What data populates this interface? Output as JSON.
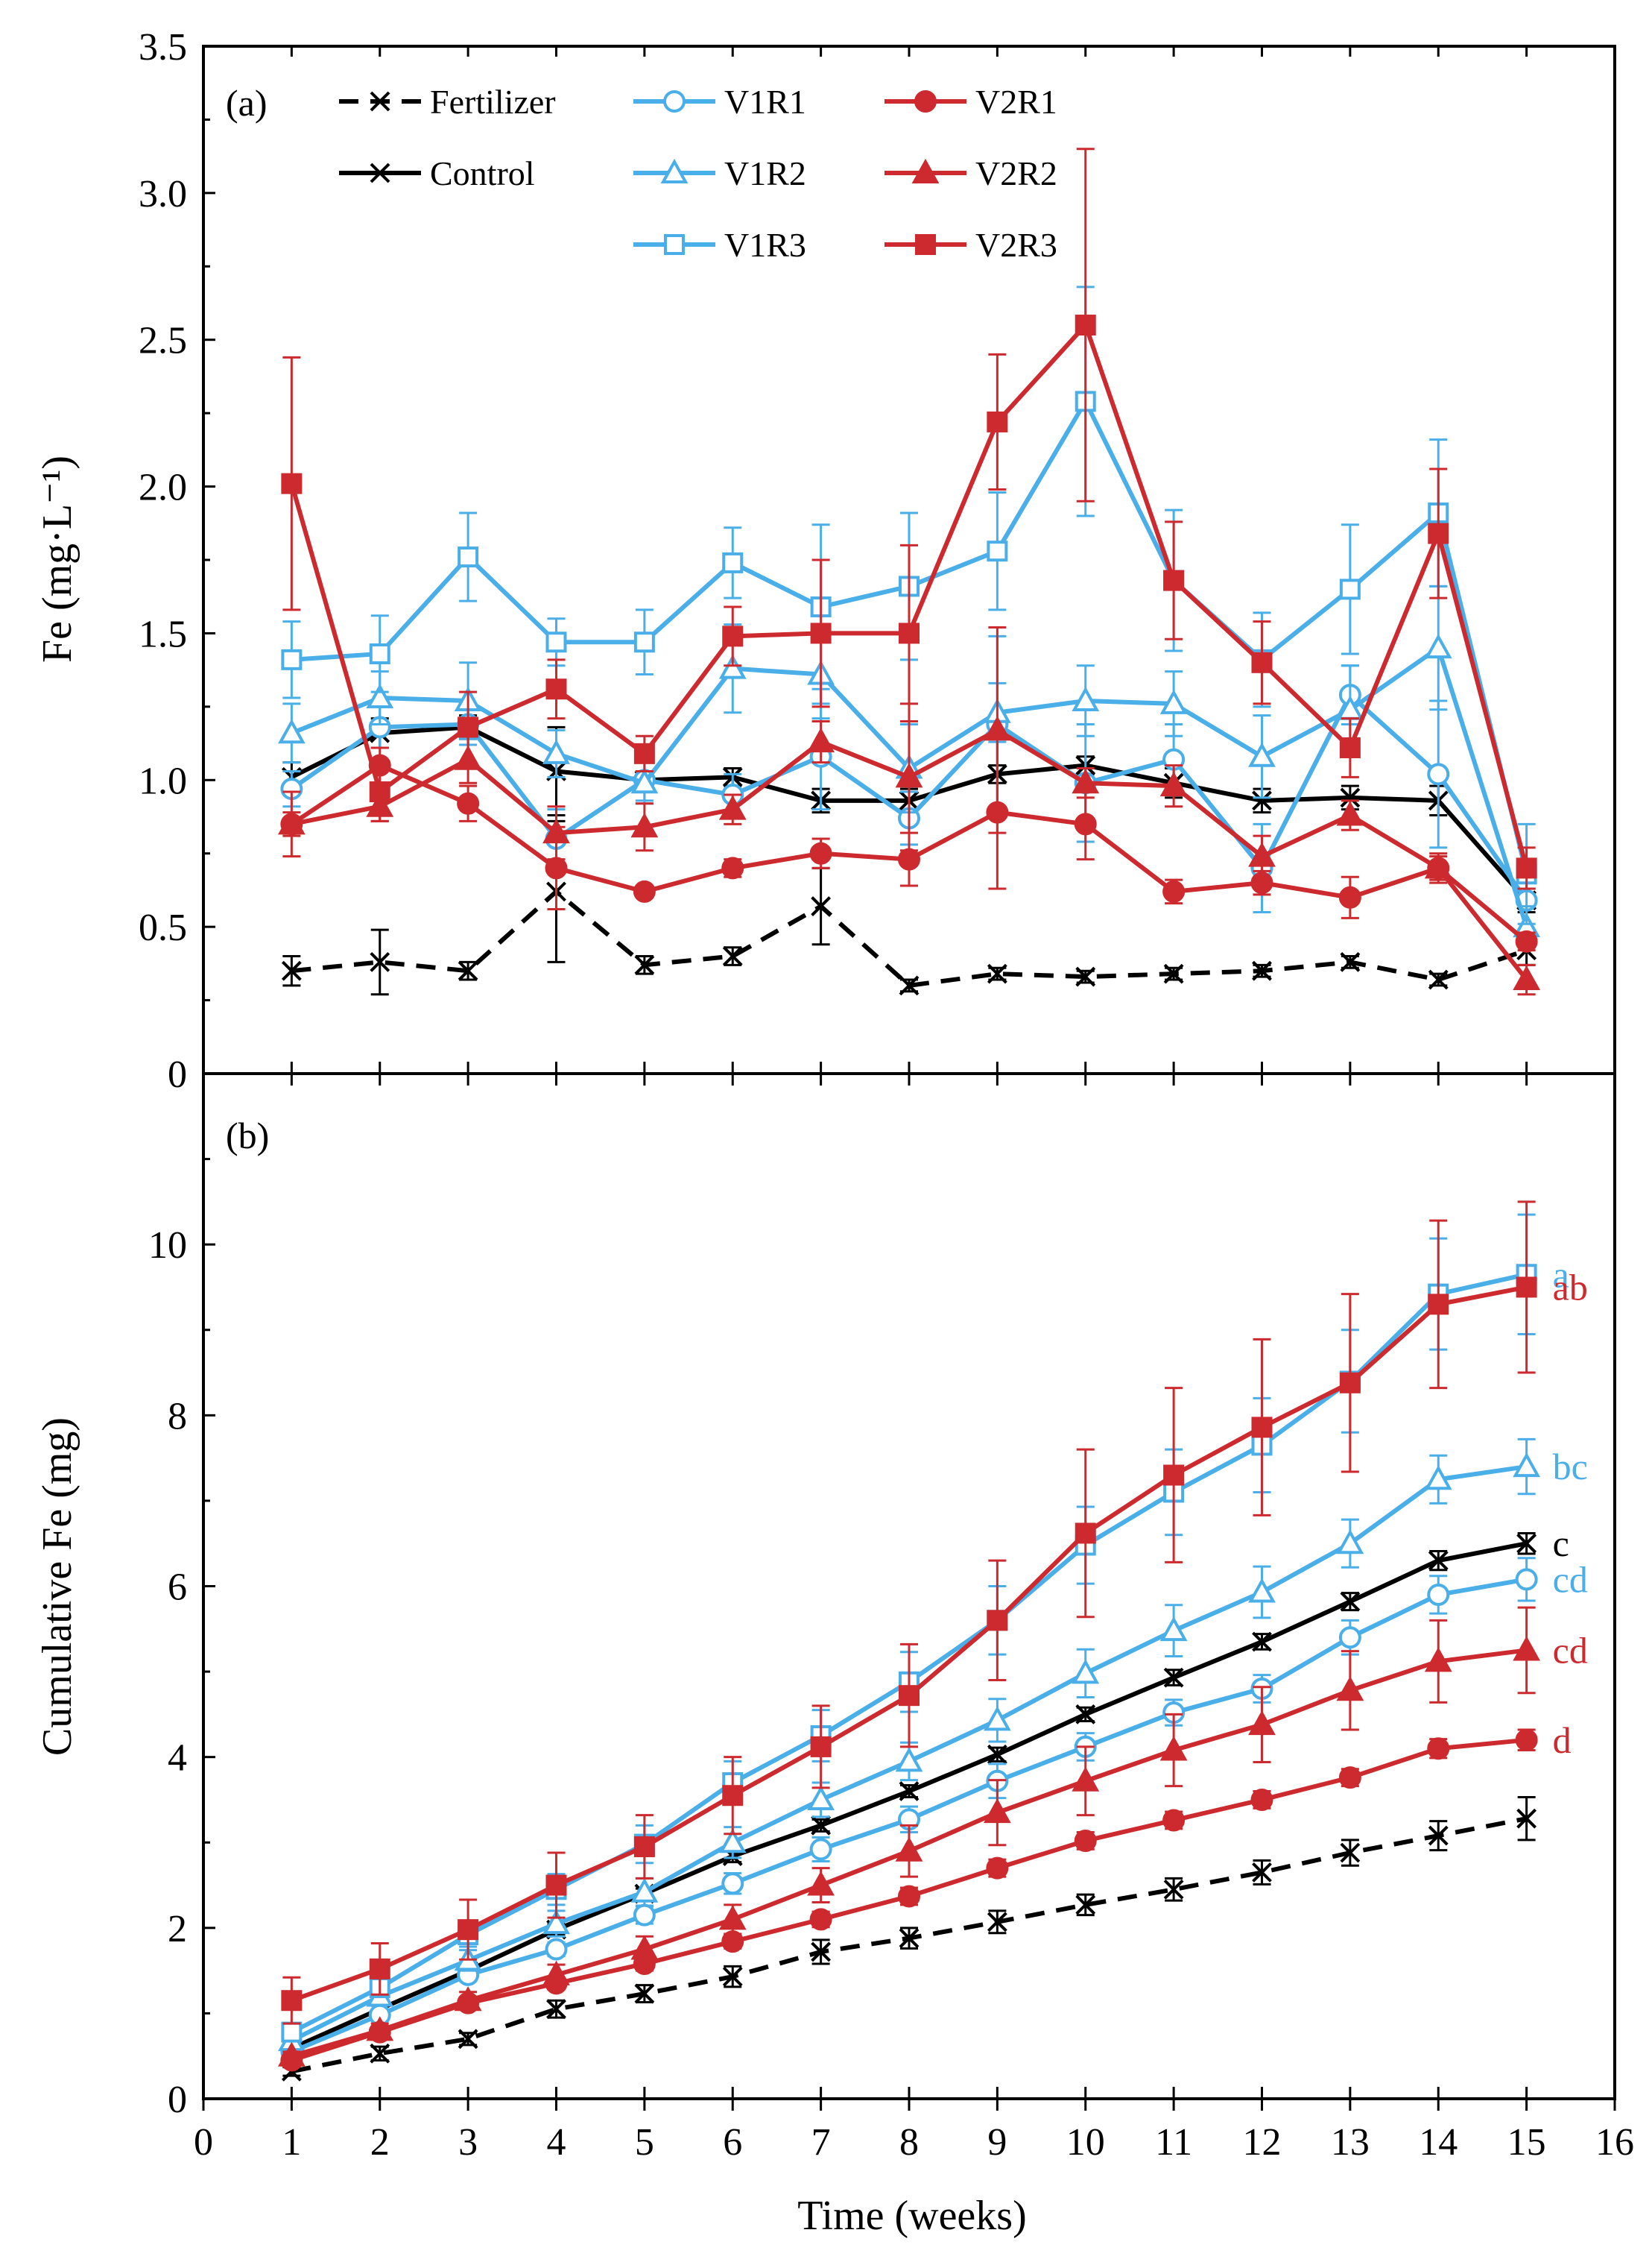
{
  "colors": {
    "blue": "#4aaee8",
    "red": "#cc2a2e",
    "black": "#000000"
  },
  "labels": {
    "xlabel": "Time (weeks)",
    "ylabel_a": "Fe (mg·L⁻¹)",
    "ylabel_b": "Cumulative Fe (mg)",
    "panel_a": "(a)",
    "panel_b": "(b)"
  },
  "legend": [
    {
      "name": "Fertilizer",
      "color": "black",
      "marker": "x",
      "dashed": true
    },
    {
      "name": "Control",
      "color": "black",
      "marker": "x",
      "dashed": false
    },
    {
      "name": "V1R1",
      "color": "blue",
      "marker": "circle"
    },
    {
      "name": "V1R2",
      "color": "blue",
      "marker": "triangle"
    },
    {
      "name": "V1R3",
      "color": "blue",
      "marker": "square"
    },
    {
      "name": "V2R1",
      "color": "red",
      "marker": "circle",
      "filled": true
    },
    {
      "name": "V2R2",
      "color": "red",
      "marker": "triangle",
      "filled": true
    },
    {
      "name": "V2R3",
      "color": "red",
      "marker": "square",
      "filled": true
    }
  ],
  "chart_data": [
    {
      "id": "a",
      "type": "line",
      "title": "(a)",
      "xlabel": "",
      "ylabel": "Fe (mg·L⁻¹)",
      "xlim": [
        0,
        16
      ],
      "ylim": [
        0,
        3.5
      ],
      "x_ticks": [],
      "y_ticks": [
        "0",
        "0.5",
        "1.0",
        "1.5",
        "2.0",
        "2.5",
        "3.0",
        "3.5"
      ],
      "y_tick_values": [
        0,
        0.5,
        1.0,
        1.5,
        2.0,
        2.5,
        3.0,
        3.5
      ],
      "x": [
        1,
        2,
        3,
        4,
        5,
        6,
        7,
        8,
        9,
        10,
        11,
        12,
        13,
        14,
        15
      ],
      "series": [
        {
          "name": "Fertilizer",
          "color": "black",
          "marker": "x",
          "dashed": true,
          "filled": false,
          "values": [
            0.35,
            0.38,
            0.35,
            0.62,
            0.37,
            0.4,
            0.57,
            0.3,
            0.34,
            0.33,
            0.34,
            0.35,
            0.38,
            0.32,
            0.42
          ],
          "err": [
            0.05,
            0.11,
            0.03,
            0.24,
            0.03,
            0.03,
            0.13,
            0.02,
            0.02,
            0.02,
            0.02,
            0.02,
            0.02,
            0.02,
            0.05
          ]
        },
        {
          "name": "Control",
          "color": "black",
          "marker": "x",
          "dashed": false,
          "filled": false,
          "values": [
            1.01,
            1.16,
            1.18,
            1.03,
            1.0,
            1.01,
            0.93,
            0.93,
            1.02,
            1.05,
            0.99,
            0.93,
            0.94,
            0.93,
            0.59
          ],
          "err": [
            0.05,
            0.05,
            0.04,
            0.15,
            0.03,
            0.03,
            0.04,
            0.04,
            0.03,
            0.03,
            0.05,
            0.04,
            0.04,
            0.05,
            0.04
          ]
        },
        {
          "name": "V1R1",
          "color": "blue",
          "marker": "circle",
          "filled": false,
          "values": [
            0.97,
            1.18,
            1.19,
            0.8,
            1.0,
            0.95,
            1.08,
            0.87,
            1.19,
            0.99,
            1.07,
            0.7,
            1.29,
            1.02,
            0.59
          ],
          "err": [
            0.06,
            0.07,
            0.07,
            0.1,
            0.07,
            0.07,
            0.18,
            0.09,
            0.3,
            0.2,
            0.12,
            0.15,
            0.1,
            0.25,
            0.1
          ]
        },
        {
          "name": "V1R2",
          "color": "blue",
          "marker": "triangle",
          "filled": false,
          "values": [
            1.16,
            1.28,
            1.27,
            1.09,
            0.99,
            1.38,
            1.36,
            1.04,
            1.23,
            1.27,
            1.26,
            1.08,
            1.24,
            1.45,
            0.5
          ],
          "err": [
            0.1,
            0.09,
            0.13,
            0.08,
            0.07,
            0.15,
            0.15,
            0.15,
            0.1,
            0.12,
            0.11,
            0.14,
            0.15,
            0.21,
            0.07
          ]
        },
        {
          "name": "V1R3",
          "color": "blue",
          "marker": "square",
          "filled": false,
          "values": [
            1.41,
            1.43,
            1.76,
            1.47,
            1.47,
            1.74,
            1.59,
            1.66,
            1.78,
            2.29,
            1.68,
            1.41,
            1.65,
            1.91,
            0.68
          ],
          "err": [
            0.13,
            0.13,
            0.15,
            0.08,
            0.11,
            0.12,
            0.28,
            0.25,
            0.2,
            0.39,
            0.24,
            0.16,
            0.22,
            0.25,
            0.17
          ]
        },
        {
          "name": "V2R1",
          "color": "red",
          "marker": "circle",
          "filled": true,
          "values": [
            0.85,
            1.05,
            0.92,
            0.7,
            0.62,
            0.7,
            0.75,
            0.73,
            0.89,
            0.85,
            0.62,
            0.65,
            0.6,
            0.7,
            0.45
          ],
          "err": [
            0.11,
            0.06,
            0.06,
            0.14,
            0.02,
            0.03,
            0.05,
            0.09,
            0.26,
            0.12,
            0.04,
            0.04,
            0.07,
            0.04,
            0.03
          ]
        },
        {
          "name": "V2R2",
          "color": "red",
          "marker": "triangle",
          "filled": true,
          "values": [
            0.85,
            0.91,
            1.07,
            0.82,
            0.84,
            0.9,
            1.13,
            1.01,
            1.17,
            0.99,
            0.98,
            0.74,
            0.88,
            0.7,
            0.32
          ],
          "err": [
            0.04,
            0.05,
            0.08,
            0.09,
            0.08,
            0.05,
            0.07,
            0.25,
            0.35,
            0.05,
            0.07,
            0.07,
            0.05,
            0.05,
            0.05
          ]
        },
        {
          "name": "V2R3",
          "color": "red",
          "marker": "square",
          "filled": true,
          "values": [
            2.01,
            0.96,
            1.18,
            1.31,
            1.09,
            1.49,
            1.5,
            1.5,
            2.22,
            2.55,
            1.68,
            1.4,
            1.11,
            1.84,
            0.7
          ],
          "err": [
            0.43,
            0.1,
            0.12,
            0.1,
            0.06,
            0.1,
            0.25,
            0.3,
            0.23,
            0.6,
            0.2,
            0.14,
            0.1,
            0.22,
            0.07
          ]
        }
      ]
    },
    {
      "id": "b",
      "type": "line",
      "title": "(b)",
      "xlabel": "Time (weeks)",
      "ylabel": "Cumulative Fe (mg)",
      "xlim": [
        0,
        16
      ],
      "ylim": [
        0,
        12
      ],
      "x_ticks": [
        "0",
        "1",
        "2",
        "3",
        "4",
        "5",
        "6",
        "7",
        "8",
        "9",
        "10",
        "11",
        "12",
        "13",
        "14",
        "15",
        "16"
      ],
      "y_ticks": [
        "0",
        "2",
        "4",
        "6",
        "8",
        "10"
      ],
      "y_tick_values": [
        0,
        2,
        4,
        6,
        8,
        10
      ],
      "x": [
        1,
        2,
        3,
        4,
        5,
        6,
        7,
        8,
        9,
        10,
        11,
        12,
        13,
        14,
        15
      ],
      "series": [
        {
          "name": "Fertilizer",
          "color": "black",
          "marker": "x",
          "dashed": true,
          "filled": false,
          "letter": "",
          "values": [
            0.32,
            0.53,
            0.7,
            1.05,
            1.23,
            1.43,
            1.72,
            1.88,
            2.07,
            2.27,
            2.45,
            2.65,
            2.88,
            3.08,
            3.28
          ],
          "err": [
            0.05,
            0.08,
            0.07,
            0.1,
            0.1,
            0.12,
            0.14,
            0.12,
            0.13,
            0.12,
            0.13,
            0.14,
            0.15,
            0.17,
            0.25
          ]
        },
        {
          "name": "Control",
          "color": "black",
          "marker": "x",
          "dashed": false,
          "filled": false,
          "letter": "c",
          "values": [
            0.59,
            1.05,
            1.5,
            1.98,
            2.4,
            2.84,
            3.2,
            3.6,
            4.03,
            4.5,
            4.93,
            5.35,
            5.82,
            6.3,
            6.5
          ],
          "err": [
            0.03,
            0.04,
            0.05,
            0.06,
            0.06,
            0.07,
            0.07,
            0.07,
            0.08,
            0.08,
            0.09,
            0.09,
            0.1,
            0.11,
            0.12
          ]
        },
        {
          "name": "V1R1",
          "color": "blue",
          "marker": "circle",
          "filled": false,
          "letter": "cd",
          "values": [
            0.55,
            0.98,
            1.45,
            1.75,
            2.15,
            2.52,
            2.92,
            3.27,
            3.72,
            4.12,
            4.52,
            4.8,
            5.4,
            5.9,
            6.08
          ],
          "err": [
            0.04,
            0.06,
            0.07,
            0.08,
            0.1,
            0.12,
            0.14,
            0.15,
            0.2,
            0.16,
            0.15,
            0.16,
            0.2,
            0.22,
            0.25
          ]
        },
        {
          "name": "V1R2",
          "color": "blue",
          "marker": "triangle",
          "filled": false,
          "letter": "bc",
          "values": [
            0.68,
            1.2,
            1.62,
            2.05,
            2.42,
            3.0,
            3.5,
            3.95,
            4.43,
            4.98,
            5.48,
            5.93,
            6.5,
            7.25,
            7.4
          ],
          "err": [
            0.06,
            0.1,
            0.12,
            0.15,
            0.16,
            0.18,
            0.2,
            0.22,
            0.25,
            0.28,
            0.3,
            0.3,
            0.28,
            0.28,
            0.32
          ]
        },
        {
          "name": "V1R3",
          "color": "blue",
          "marker": "square",
          "filled": false,
          "letter": "a",
          "values": [
            0.78,
            1.3,
            1.92,
            2.45,
            2.98,
            3.7,
            4.25,
            4.88,
            5.6,
            6.48,
            7.1,
            7.65,
            8.4,
            9.42,
            9.65
          ],
          "err": [
            0.07,
            0.1,
            0.14,
            0.18,
            0.22,
            0.25,
            0.3,
            0.35,
            0.4,
            0.45,
            0.5,
            0.55,
            0.6,
            0.65,
            0.7
          ]
        },
        {
          "name": "V2R1",
          "color": "red",
          "marker": "circle",
          "filled": true,
          "letter": "d",
          "values": [
            0.45,
            0.78,
            1.12,
            1.35,
            1.58,
            1.84,
            2.1,
            2.37,
            2.7,
            3.02,
            3.26,
            3.5,
            3.76,
            4.1,
            4.2
          ],
          "err": [
            0.04,
            0.05,
            0.06,
            0.07,
            0.08,
            0.08,
            0.09,
            0.1,
            0.1,
            0.1,
            0.1,
            0.1,
            0.1,
            0.11,
            0.12
          ]
        },
        {
          "name": "V2R2",
          "color": "red",
          "marker": "triangle",
          "filled": true,
          "letter": "cd",
          "values": [
            0.5,
            0.8,
            1.15,
            1.45,
            1.75,
            2.1,
            2.5,
            2.9,
            3.35,
            3.72,
            4.08,
            4.38,
            4.78,
            5.12,
            5.25
          ],
          "err": [
            0.05,
            0.08,
            0.1,
            0.12,
            0.15,
            0.17,
            0.2,
            0.3,
            0.38,
            0.4,
            0.42,
            0.44,
            0.46,
            0.48,
            0.5
          ]
        },
        {
          "name": "V2R3",
          "color": "red",
          "marker": "square",
          "filled": true,
          "letter": "ab",
          "values": [
            1.15,
            1.52,
            1.98,
            2.5,
            2.95,
            3.55,
            4.12,
            4.72,
            5.6,
            6.62,
            7.3,
            7.86,
            8.38,
            9.3,
            9.5
          ],
          "err": [
            0.27,
            0.3,
            0.35,
            0.38,
            0.37,
            0.45,
            0.48,
            0.6,
            0.7,
            0.98,
            1.02,
            1.03,
            1.04,
            0.98,
            1.0
          ]
        }
      ]
    }
  ]
}
